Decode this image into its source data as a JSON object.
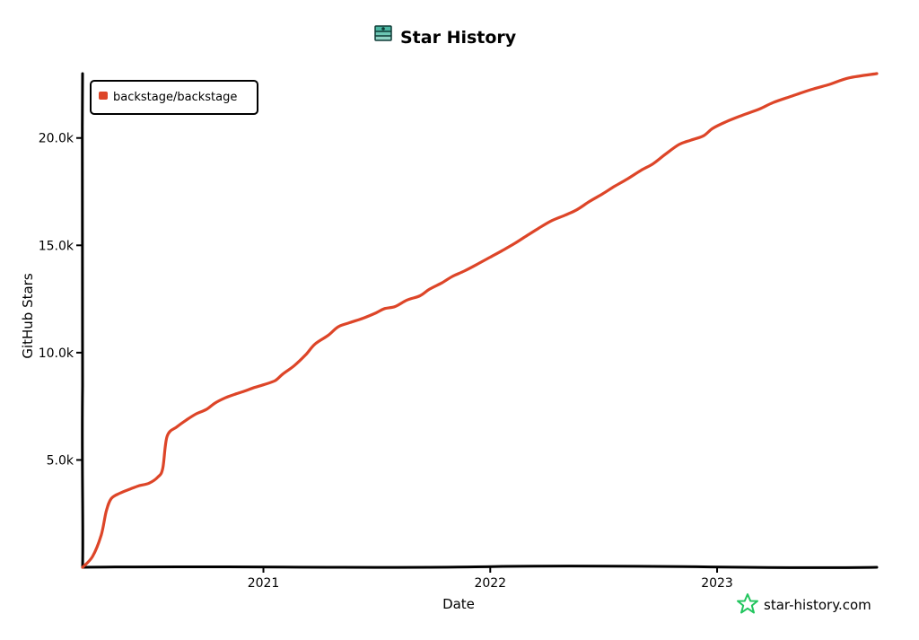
{
  "brand": {
    "logo_icon": "star-history-logo-icon",
    "footer_icon": "star-outline-icon",
    "footer_text": "star-history.com",
    "footer_color": "#22c55e"
  },
  "chart_data": {
    "type": "line",
    "title": "Star History",
    "xlabel": "Date",
    "ylabel": "GitHub Stars",
    "xlim": [
      "2020-03-16",
      "2023-09-15"
    ],
    "ylim": [
      0,
      23000
    ],
    "x_ticks": [
      {
        "value": "2021-01-01",
        "label": "2021"
      },
      {
        "value": "2022-01-01",
        "label": "2022"
      },
      {
        "value": "2023-01-01",
        "label": "2023"
      }
    ],
    "y_ticks": [
      {
        "value": 5000,
        "label": "5.0k"
      },
      {
        "value": 10000,
        "label": "10.0k"
      },
      {
        "value": 15000,
        "label": "15.0k"
      },
      {
        "value": 20000,
        "label": "20.0k"
      }
    ],
    "grid": false,
    "legend_position": "top-left",
    "series": [
      {
        "name": "backstage/backstage",
        "color": "#dd4528",
        "points": [
          [
            "2020-03-16",
            0
          ],
          [
            "2020-04-01",
            500
          ],
          [
            "2020-04-15",
            1500
          ],
          [
            "2020-04-23",
            2600
          ],
          [
            "2020-05-01",
            3200
          ],
          [
            "2020-05-15",
            3450
          ],
          [
            "2020-06-01",
            3650
          ],
          [
            "2020-06-15",
            3800
          ],
          [
            "2020-07-01",
            3920
          ],
          [
            "2020-07-15",
            4200
          ],
          [
            "2020-07-23",
            4600
          ],
          [
            "2020-07-30",
            6100
          ],
          [
            "2020-08-15",
            6550
          ],
          [
            "2020-09-01",
            6900
          ],
          [
            "2020-09-15",
            7150
          ],
          [
            "2020-10-01",
            7350
          ],
          [
            "2020-10-15",
            7650
          ],
          [
            "2020-11-01",
            7900
          ],
          [
            "2020-11-15",
            8050
          ],
          [
            "2020-12-01",
            8200
          ],
          [
            "2020-12-15",
            8350
          ],
          [
            "2021-01-01",
            8500
          ],
          [
            "2021-01-20",
            8700
          ],
          [
            "2021-02-01",
            9000
          ],
          [
            "2021-02-20",
            9400
          ],
          [
            "2021-03-10",
            9900
          ],
          [
            "2021-03-25",
            10400
          ],
          [
            "2021-04-15",
            10800
          ],
          [
            "2021-05-01",
            11200
          ],
          [
            "2021-05-20",
            11400
          ],
          [
            "2021-06-10",
            11600
          ],
          [
            "2021-07-01",
            11850
          ],
          [
            "2021-07-15",
            12050
          ],
          [
            "2021-08-01",
            12150
          ],
          [
            "2021-08-20",
            12450
          ],
          [
            "2021-09-10",
            12650
          ],
          [
            "2021-09-25",
            12950
          ],
          [
            "2021-10-15",
            13250
          ],
          [
            "2021-11-01",
            13550
          ],
          [
            "2021-11-20",
            13800
          ],
          [
            "2021-12-10",
            14100
          ],
          [
            "2022-01-01",
            14450
          ],
          [
            "2022-01-20",
            14750
          ],
          [
            "2022-02-10",
            15100
          ],
          [
            "2022-03-01",
            15450
          ],
          [
            "2022-03-20",
            15800
          ],
          [
            "2022-04-10",
            16150
          ],
          [
            "2022-05-01",
            16400
          ],
          [
            "2022-05-20",
            16650
          ],
          [
            "2022-06-10",
            17050
          ],
          [
            "2022-07-01",
            17400
          ],
          [
            "2022-07-20",
            17750
          ],
          [
            "2022-08-10",
            18100
          ],
          [
            "2022-09-01",
            18500
          ],
          [
            "2022-09-20",
            18800
          ],
          [
            "2022-10-10",
            19250
          ],
          [
            "2022-11-01",
            19700
          ],
          [
            "2022-11-20",
            19900
          ],
          [
            "2022-12-10",
            20100
          ],
          [
            "2022-12-25",
            20450
          ],
          [
            "2023-01-15",
            20750
          ],
          [
            "2023-02-10",
            21050
          ],
          [
            "2023-03-10",
            21350
          ],
          [
            "2023-04-01",
            21650
          ],
          [
            "2023-05-01",
            21950
          ],
          [
            "2023-06-01",
            22250
          ],
          [
            "2023-07-01",
            22500
          ],
          [
            "2023-08-01",
            22800
          ],
          [
            "2023-09-15",
            23000
          ]
        ]
      }
    ]
  }
}
